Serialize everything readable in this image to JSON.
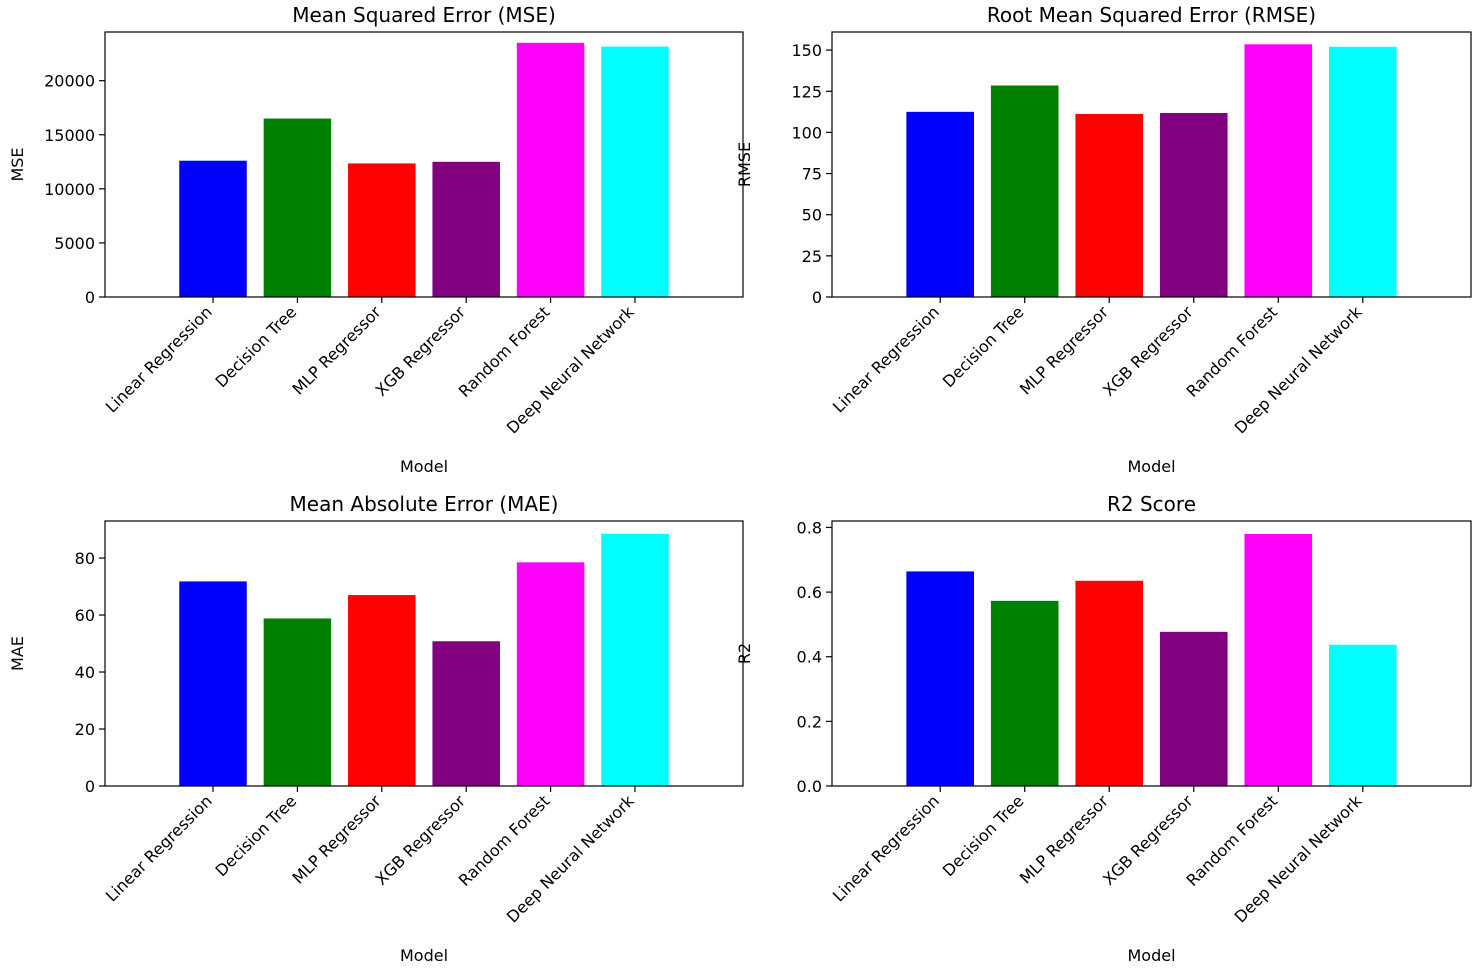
{
  "chart_data": [
    {
      "type": "bar",
      "title": "Mean Squared Error (MSE)",
      "xlabel": "Model",
      "ylabel": "MSE",
      "categories": [
        "Linear Regression",
        "Decision Tree",
        "MLP Regressor",
        "XGB Regressor",
        "Random Forest",
        "Deep Neural Network"
      ],
      "values": [
        12600,
        16500,
        12350,
        12500,
        23500,
        23150
      ],
      "colors": [
        "#0000ff",
        "#008000",
        "#ff0000",
        "#800080",
        "#ff00ff",
        "#00ffff"
      ],
      "ylim": [
        0,
        24500
      ],
      "yticks": [
        0,
        5000,
        10000,
        15000,
        20000
      ],
      "grid": false,
      "legend": "none"
    },
    {
      "type": "bar",
      "title": "Root Mean Squared Error (RMSE)",
      "xlabel": "Model",
      "ylabel": "RMSE",
      "categories": [
        "Linear Regression",
        "Decision Tree",
        "MLP Regressor",
        "XGB Regressor",
        "Random Forest",
        "Deep Neural Network"
      ],
      "values": [
        112.5,
        128.5,
        111.2,
        111.8,
        153.5,
        152.0
      ],
      "colors": [
        "#0000ff",
        "#008000",
        "#ff0000",
        "#800080",
        "#ff00ff",
        "#00ffff"
      ],
      "ylim": [
        0,
        161
      ],
      "yticks": [
        0,
        25,
        50,
        75,
        100,
        125,
        150
      ],
      "grid": false,
      "legend": "none"
    },
    {
      "type": "bar",
      "title": "Mean Absolute Error (MAE)",
      "xlabel": "Model",
      "ylabel": "MAE",
      "categories": [
        "Linear Regression",
        "Decision Tree",
        "MLP Regressor",
        "XGB Regressor",
        "Random Forest",
        "Deep Neural Network"
      ],
      "values": [
        71.8,
        58.8,
        67.0,
        50.8,
        78.5,
        88.5
      ],
      "colors": [
        "#0000ff",
        "#008000",
        "#ff0000",
        "#800080",
        "#ff00ff",
        "#00ffff"
      ],
      "ylim": [
        0,
        93
      ],
      "yticks": [
        0,
        20,
        40,
        60,
        80
      ],
      "grid": false,
      "legend": "none"
    },
    {
      "type": "bar",
      "title": "R2 Score",
      "xlabel": "Model",
      "ylabel": "R2",
      "categories": [
        "Linear Regression",
        "Decision Tree",
        "MLP Regressor",
        "XGB Regressor",
        "Random Forest",
        "Deep Neural Network"
      ],
      "values": [
        0.664,
        0.573,
        0.635,
        0.477,
        0.78,
        0.437
      ],
      "colors": [
        "#0000ff",
        "#008000",
        "#ff0000",
        "#800080",
        "#ff00ff",
        "#00ffff"
      ],
      "ylim": [
        0,
        0.82
      ],
      "yticks": [
        0.0,
        0.2,
        0.4,
        0.6,
        0.8
      ],
      "ytick_decimals": 1,
      "grid": false,
      "legend": "none"
    }
  ]
}
